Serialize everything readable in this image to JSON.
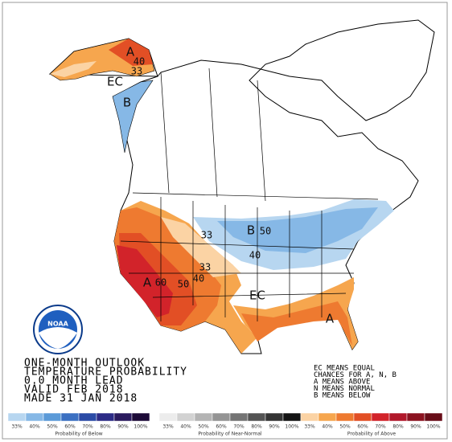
{
  "outlook": {
    "lines": [
      "ONE-MONTH OUTLOOK",
      "TEMPERATURE PROBABILITY",
      "0.0 MONTH LEAD",
      "VALID FEB 2018",
      "MADE 31 JAN 2018"
    ]
  },
  "key": {
    "lines": [
      "EC MEANS EQUAL",
      "CHANCES FOR A, N, B",
      "A MEANS ABOVE",
      "N MEANS NORMAL",
      "B MEANS BELOW"
    ]
  },
  "logo": {
    "text": "NOAA"
  },
  "map_labels": [
    "A",
    "40",
    "33",
    "EC",
    "B",
    "33",
    "B",
    "50",
    "40",
    "33",
    "A",
    "60",
    "50",
    "40",
    "EC",
    "A"
  ],
  "legend": [
    {
      "title": "Probability of Below",
      "ticks": [
        "33%",
        "40%",
        "50%",
        "60%",
        "70%",
        "80%",
        "90%",
        "100%"
      ],
      "colors": [
        "#b7d6f0",
        "#86b8e6",
        "#5b9ad8",
        "#3b70c2",
        "#2b4ba6",
        "#2c2b86",
        "#2a1a5e",
        "#1d0b38"
      ]
    },
    {
      "title": "Probability of Near-Normal",
      "ticks": [
        "33%",
        "40%",
        "50%",
        "60%",
        "70%",
        "80%",
        "90%",
        "100%"
      ],
      "colors": [
        "#ececec",
        "#d2d2d2",
        "#b4b4b4",
        "#949494",
        "#747474",
        "#545454",
        "#343434",
        "#141414"
      ]
    },
    {
      "title": "Probability of Above",
      "ticks": [
        "33%",
        "40%",
        "50%",
        "60%",
        "70%",
        "80%",
        "90%",
        "100%"
      ],
      "colors": [
        "#fbd3a4",
        "#f6a64e",
        "#ee7a30",
        "#e24f25",
        "#d2232a",
        "#b1182b",
        "#8b1320",
        "#680d18"
      ]
    }
  ]
}
